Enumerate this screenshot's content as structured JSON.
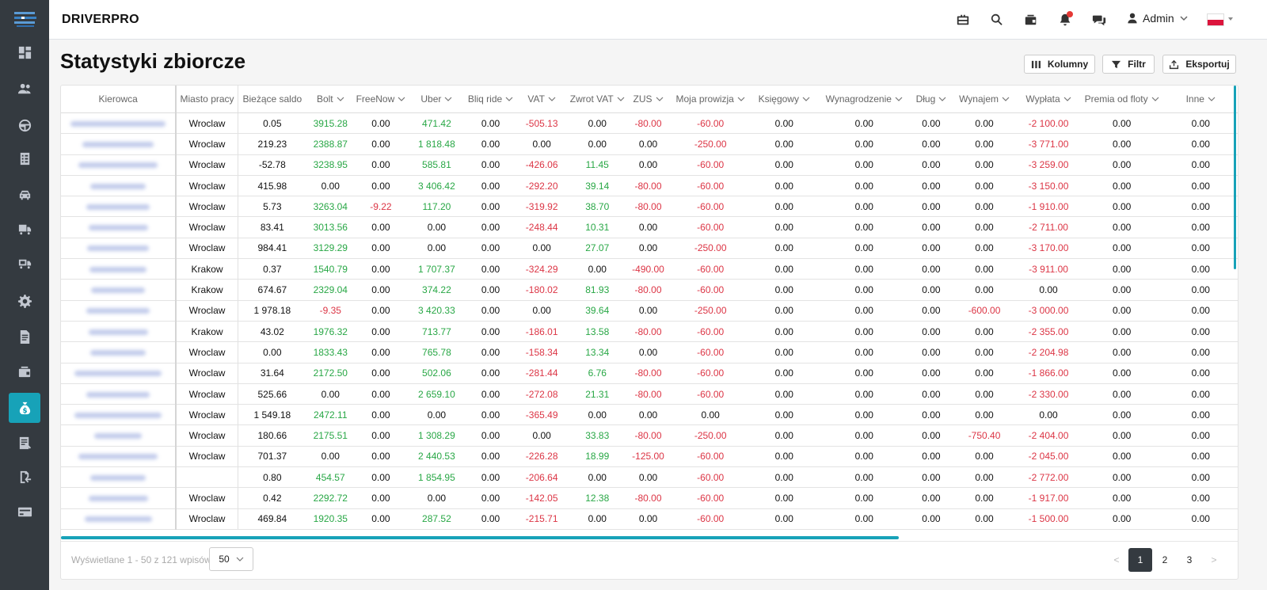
{
  "app": {
    "brand": "DRIVERPRO"
  },
  "header": {
    "user_name": "Admin",
    "notification_dot": true,
    "language": "pl"
  },
  "page": {
    "title": "Statystyki zbiorcze"
  },
  "toolbar": {
    "columns_label": "Kolumny",
    "filter_label": "Filtr",
    "export_label": "Eksportuj"
  },
  "sidebar": {
    "items": [
      {
        "icon": "dashboard-icon"
      },
      {
        "icon": "users-icon"
      },
      {
        "icon": "steering-wheel-icon"
      },
      {
        "icon": "checklist-icon"
      },
      {
        "icon": "car-icon"
      },
      {
        "icon": "truck-icon"
      },
      {
        "icon": "truck-alt-icon"
      },
      {
        "icon": "settings-cog-icon"
      },
      {
        "icon": "document-icon"
      },
      {
        "icon": "wallet-icon"
      },
      {
        "icon": "money-bag-icon",
        "active": true
      },
      {
        "icon": "invoice-icon"
      },
      {
        "icon": "transfer-icon"
      },
      {
        "icon": "credit-card-icon"
      }
    ]
  },
  "table": {
    "columns": [
      {
        "label": "Kierowca",
        "sortable": false
      },
      {
        "label": "Miasto pracy",
        "sortable": false
      },
      {
        "label": "Bieżące saldo",
        "sortable": false
      },
      {
        "label": "Bolt",
        "sortable": true
      },
      {
        "label": "FreeNow",
        "sortable": true
      },
      {
        "label": "Uber",
        "sortable": true
      },
      {
        "label": "Bliq ride",
        "sortable": true
      },
      {
        "label": "VAT",
        "sortable": true
      },
      {
        "label": "Zwrot VAT",
        "sortable": true
      },
      {
        "label": "ZUS",
        "sortable": true
      },
      {
        "label": "Moja prowizja",
        "sortable": true
      },
      {
        "label": "Księgowy",
        "sortable": true
      },
      {
        "label": "Wynagrodzenie",
        "sortable": true
      },
      {
        "label": "Dług",
        "sortable": true
      },
      {
        "label": "Wynajem",
        "sortable": true
      },
      {
        "label": "Wypłata",
        "sortable": true
      },
      {
        "label": "Premia od floty",
        "sortable": true
      },
      {
        "label": "Inne",
        "sortable": true
      }
    ],
    "rows": [
      [
        "",
        "Wroclaw",
        "0.05",
        "3915.28",
        "0.00",
        "471.42",
        "0.00",
        "-505.13",
        "0.00",
        "-80.00",
        "-60.00",
        "0.00",
        "0.00",
        "0.00",
        "0.00",
        "-2 100.00",
        "0.00",
        "0.00"
      ],
      [
        "",
        "Wroclaw",
        "219.23",
        "2388.87",
        "0.00",
        "1 818.48",
        "0.00",
        "0.00",
        "0.00",
        "0.00",
        "-250.00",
        "0.00",
        "0.00",
        "0.00",
        "0.00",
        "-3 771.00",
        "0.00",
        "0.00"
      ],
      [
        "",
        "Wroclaw",
        "-52.78",
        "3238.95",
        "0.00",
        "585.81",
        "0.00",
        "-426.06",
        "11.45",
        "0.00",
        "-60.00",
        "0.00",
        "0.00",
        "0.00",
        "0.00",
        "-3 259.00",
        "0.00",
        "0.00"
      ],
      [
        "",
        "Wroclaw",
        "415.98",
        "0.00",
        "0.00",
        "3 406.42",
        "0.00",
        "-292.20",
        "39.14",
        "-80.00",
        "-60.00",
        "0.00",
        "0.00",
        "0.00",
        "0.00",
        "-3 150.00",
        "0.00",
        "0.00"
      ],
      [
        "",
        "Wroclaw",
        "5.73",
        "3263.04",
        "-9.22",
        "117.20",
        "0.00",
        "-319.92",
        "38.70",
        "-80.00",
        "-60.00",
        "0.00",
        "0.00",
        "0.00",
        "0.00",
        "-1 910.00",
        "0.00",
        "0.00"
      ],
      [
        "",
        "Wroclaw",
        "83.41",
        "3013.56",
        "0.00",
        "0.00",
        "0.00",
        "-248.44",
        "10.31",
        "0.00",
        "-60.00",
        "0.00",
        "0.00",
        "0.00",
        "0.00",
        "-2 711.00",
        "0.00",
        "0.00"
      ],
      [
        "",
        "Wroclaw",
        "984.41",
        "3129.29",
        "0.00",
        "0.00",
        "0.00",
        "0.00",
        "27.07",
        "0.00",
        "-250.00",
        "0.00",
        "0.00",
        "0.00",
        "0.00",
        "-3 170.00",
        "0.00",
        "0.00"
      ],
      [
        "",
        "Krakow",
        "0.37",
        "1540.79",
        "0.00",
        "1 707.37",
        "0.00",
        "-324.29",
        "0.00",
        "-490.00",
        "-60.00",
        "0.00",
        "0.00",
        "0.00",
        "0.00",
        "-3 911.00",
        "0.00",
        "0.00"
      ],
      [
        "",
        "Krakow",
        "674.67",
        "2329.04",
        "0.00",
        "374.22",
        "0.00",
        "-180.02",
        "81.93",
        "-80.00",
        "-60.00",
        "0.00",
        "0.00",
        "0.00",
        "0.00",
        "0.00",
        "0.00",
        "0.00"
      ],
      [
        "",
        "Wroclaw",
        "1 978.18",
        "-9.35",
        "0.00",
        "3 420.33",
        "0.00",
        "0.00",
        "39.64",
        "0.00",
        "-250.00",
        "0.00",
        "0.00",
        "0.00",
        "-600.00",
        "-3 000.00",
        "0.00",
        "0.00"
      ],
      [
        "",
        "Krakow",
        "43.02",
        "1976.32",
        "0.00",
        "713.77",
        "0.00",
        "-186.01",
        "13.58",
        "-80.00",
        "-60.00",
        "0.00",
        "0.00",
        "0.00",
        "0.00",
        "-2 355.00",
        "0.00",
        "0.00"
      ],
      [
        "",
        "Wroclaw",
        "0.00",
        "1833.43",
        "0.00",
        "765.78",
        "0.00",
        "-158.34",
        "13.34",
        "0.00",
        "-60.00",
        "0.00",
        "0.00",
        "0.00",
        "0.00",
        "-2 204.98",
        "0.00",
        "0.00"
      ],
      [
        "",
        "Wroclaw",
        "31.64",
        "2172.50",
        "0.00",
        "502.06",
        "0.00",
        "-281.44",
        "6.76",
        "-80.00",
        "-60.00",
        "0.00",
        "0.00",
        "0.00",
        "0.00",
        "-1 866.00",
        "0.00",
        "0.00"
      ],
      [
        "",
        "Wroclaw",
        "525.66",
        "0.00",
        "0.00",
        "2 659.10",
        "0.00",
        "-272.08",
        "21.31",
        "-80.00",
        "-60.00",
        "0.00",
        "0.00",
        "0.00",
        "0.00",
        "-2 330.00",
        "0.00",
        "0.00"
      ],
      [
        "",
        "Wroclaw",
        "1 549.18",
        "2472.11",
        "0.00",
        "0.00",
        "0.00",
        "-365.49",
        "0.00",
        "0.00",
        "0.00",
        "0.00",
        "0.00",
        "0.00",
        "0.00",
        "0.00",
        "0.00",
        "0.00"
      ],
      [
        "",
        "Wroclaw",
        "180.66",
        "2175.51",
        "0.00",
        "1 308.29",
        "0.00",
        "0.00",
        "33.83",
        "-80.00",
        "-250.00",
        "0.00",
        "0.00",
        "0.00",
        "-750.40",
        "-2 404.00",
        "0.00",
        "0.00"
      ],
      [
        "",
        "Wroclaw",
        "701.37",
        "0.00",
        "0.00",
        "2 440.53",
        "0.00",
        "-226.28",
        "18.99",
        "-125.00",
        "-60.00",
        "0.00",
        "0.00",
        "0.00",
        "0.00",
        "-2 045.00",
        "0.00",
        "0.00"
      ],
      [
        "",
        "",
        "0.80",
        "454.57",
        "0.00",
        "1 854.95",
        "0.00",
        "-206.64",
        "0.00",
        "0.00",
        "-60.00",
        "0.00",
        "0.00",
        "0.00",
        "0.00",
        "-2 772.00",
        "0.00",
        "0.00"
      ],
      [
        "",
        "Wroclaw",
        "0.42",
        "2292.72",
        "0.00",
        "0.00",
        "0.00",
        "-142.05",
        "12.38",
        "-80.00",
        "-60.00",
        "0.00",
        "0.00",
        "0.00",
        "0.00",
        "-1 917.00",
        "0.00",
        "0.00"
      ],
      [
        "",
        "Wroclaw",
        "469.84",
        "1920.35",
        "0.00",
        "287.52",
        "0.00",
        "-215.71",
        "0.00",
        "0.00",
        "-60.00",
        "0.00",
        "0.00",
        "0.00",
        "0.00",
        "-1 500.00",
        "0.00",
        "0.00"
      ]
    ]
  },
  "footer": {
    "info": "Wyświetlane 1 - 50 z 121 wpisów",
    "page_size": "50",
    "pagination": {
      "prev": "<",
      "pages": [
        "1",
        "2",
        "3"
      ],
      "current": "1",
      "next": ">"
    }
  }
}
